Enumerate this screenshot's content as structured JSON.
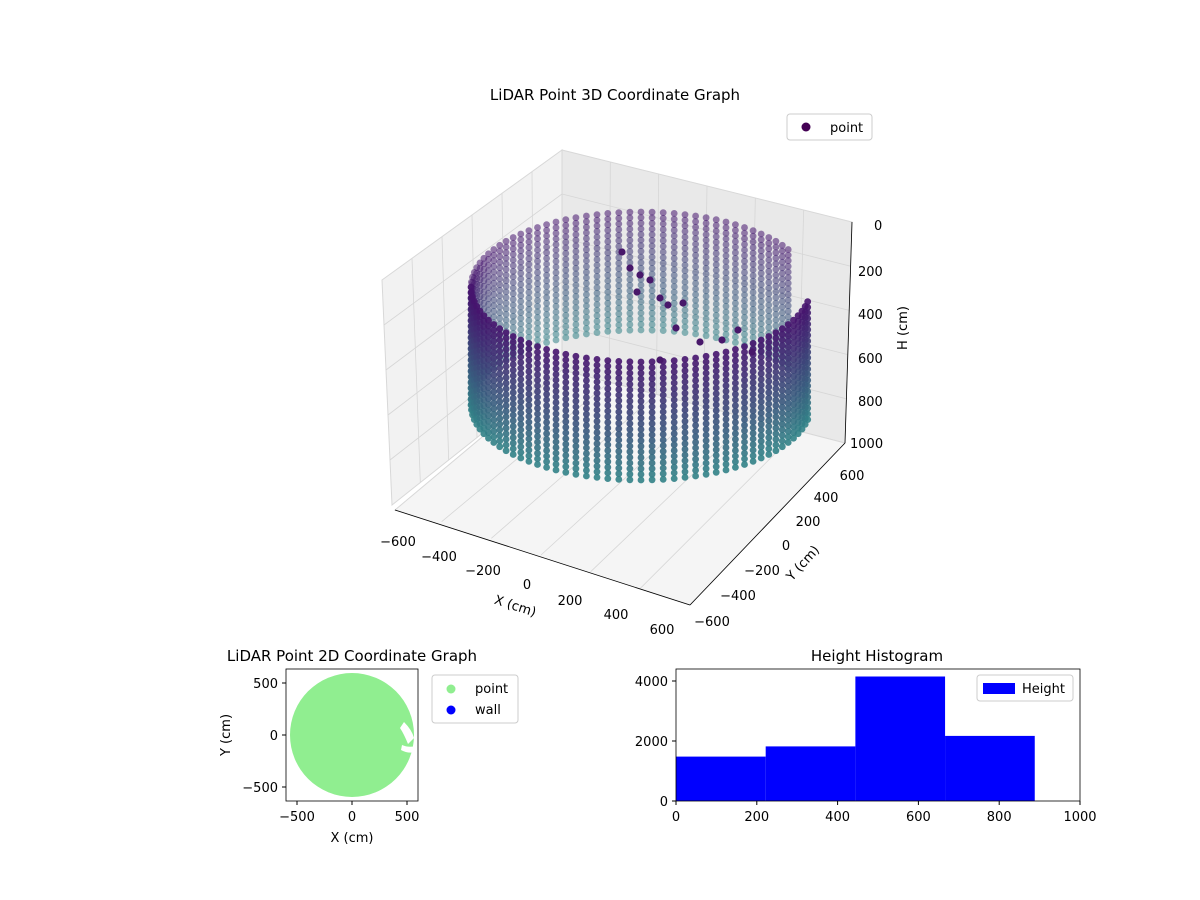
{
  "chart_data": [
    {
      "type": "scatter3d",
      "title": "LiDAR Point 3D Coordinate Graph",
      "xlabel": "X (cm)",
      "ylabel": "Y (cm)",
      "zlabel": "H (cm)",
      "xlim": [
        -600,
        600
      ],
      "ylim": [
        -600,
        600
      ],
      "zlim": [
        0,
        1000
      ],
      "z_inverted": true,
      "x_ticks": [
        "−600",
        "−400",
        "−200",
        "0",
        "200",
        "400",
        "600"
      ],
      "y_ticks": [
        "−600",
        "−400",
        "−200",
        "0",
        "200",
        "400",
        "600"
      ],
      "z_ticks": [
        "0",
        "200",
        "400",
        "600",
        "800",
        "1000"
      ],
      "legend": [
        {
          "label": "point",
          "color": "#440154"
        }
      ],
      "legend_position": "top-right",
      "colormap": "viridis",
      "grid": true,
      "shape": "cylindrical wall of points, radius about 600 cm, heights 0 to 1000 cm, with an opening on the +X side"
    },
    {
      "type": "scatter",
      "title": "LiDAR Point 2D Coordinate Graph",
      "xlabel": "X (cm)",
      "ylabel": "Y (cm)",
      "xlim": [
        -600,
        600
      ],
      "ylim": [
        -600,
        600
      ],
      "x_ticks": [
        "−500",
        "0",
        "500"
      ],
      "y_ticks": [
        "500",
        "0",
        "−500"
      ],
      "series": [
        {
          "name": "point",
          "color": "#90ee90",
          "shape": "filled disk, radius about 600 cm"
        },
        {
          "name": "wall",
          "color": "#0000ff"
        }
      ],
      "legend_position": "outside-right"
    },
    {
      "type": "bar",
      "title": "Height Histogram",
      "bins": [
        {
          "start": 0,
          "end": 222,
          "count": 1480
        },
        {
          "start": 222,
          "end": 444,
          "count": 1820
        },
        {
          "start": 444,
          "end": 666,
          "count": 4150
        },
        {
          "start": 666,
          "end": 888,
          "count": 2170
        }
      ],
      "xlim": [
        0,
        1000
      ],
      "ylim": [
        0,
        4400
      ],
      "x_ticks": [
        0,
        200,
        400,
        600,
        800,
        1000
      ],
      "y_ticks": [
        0,
        2000,
        4000
      ],
      "series": [
        {
          "name": "Height",
          "color": "#0000ff"
        }
      ],
      "legend_position": "top-right"
    }
  ]
}
